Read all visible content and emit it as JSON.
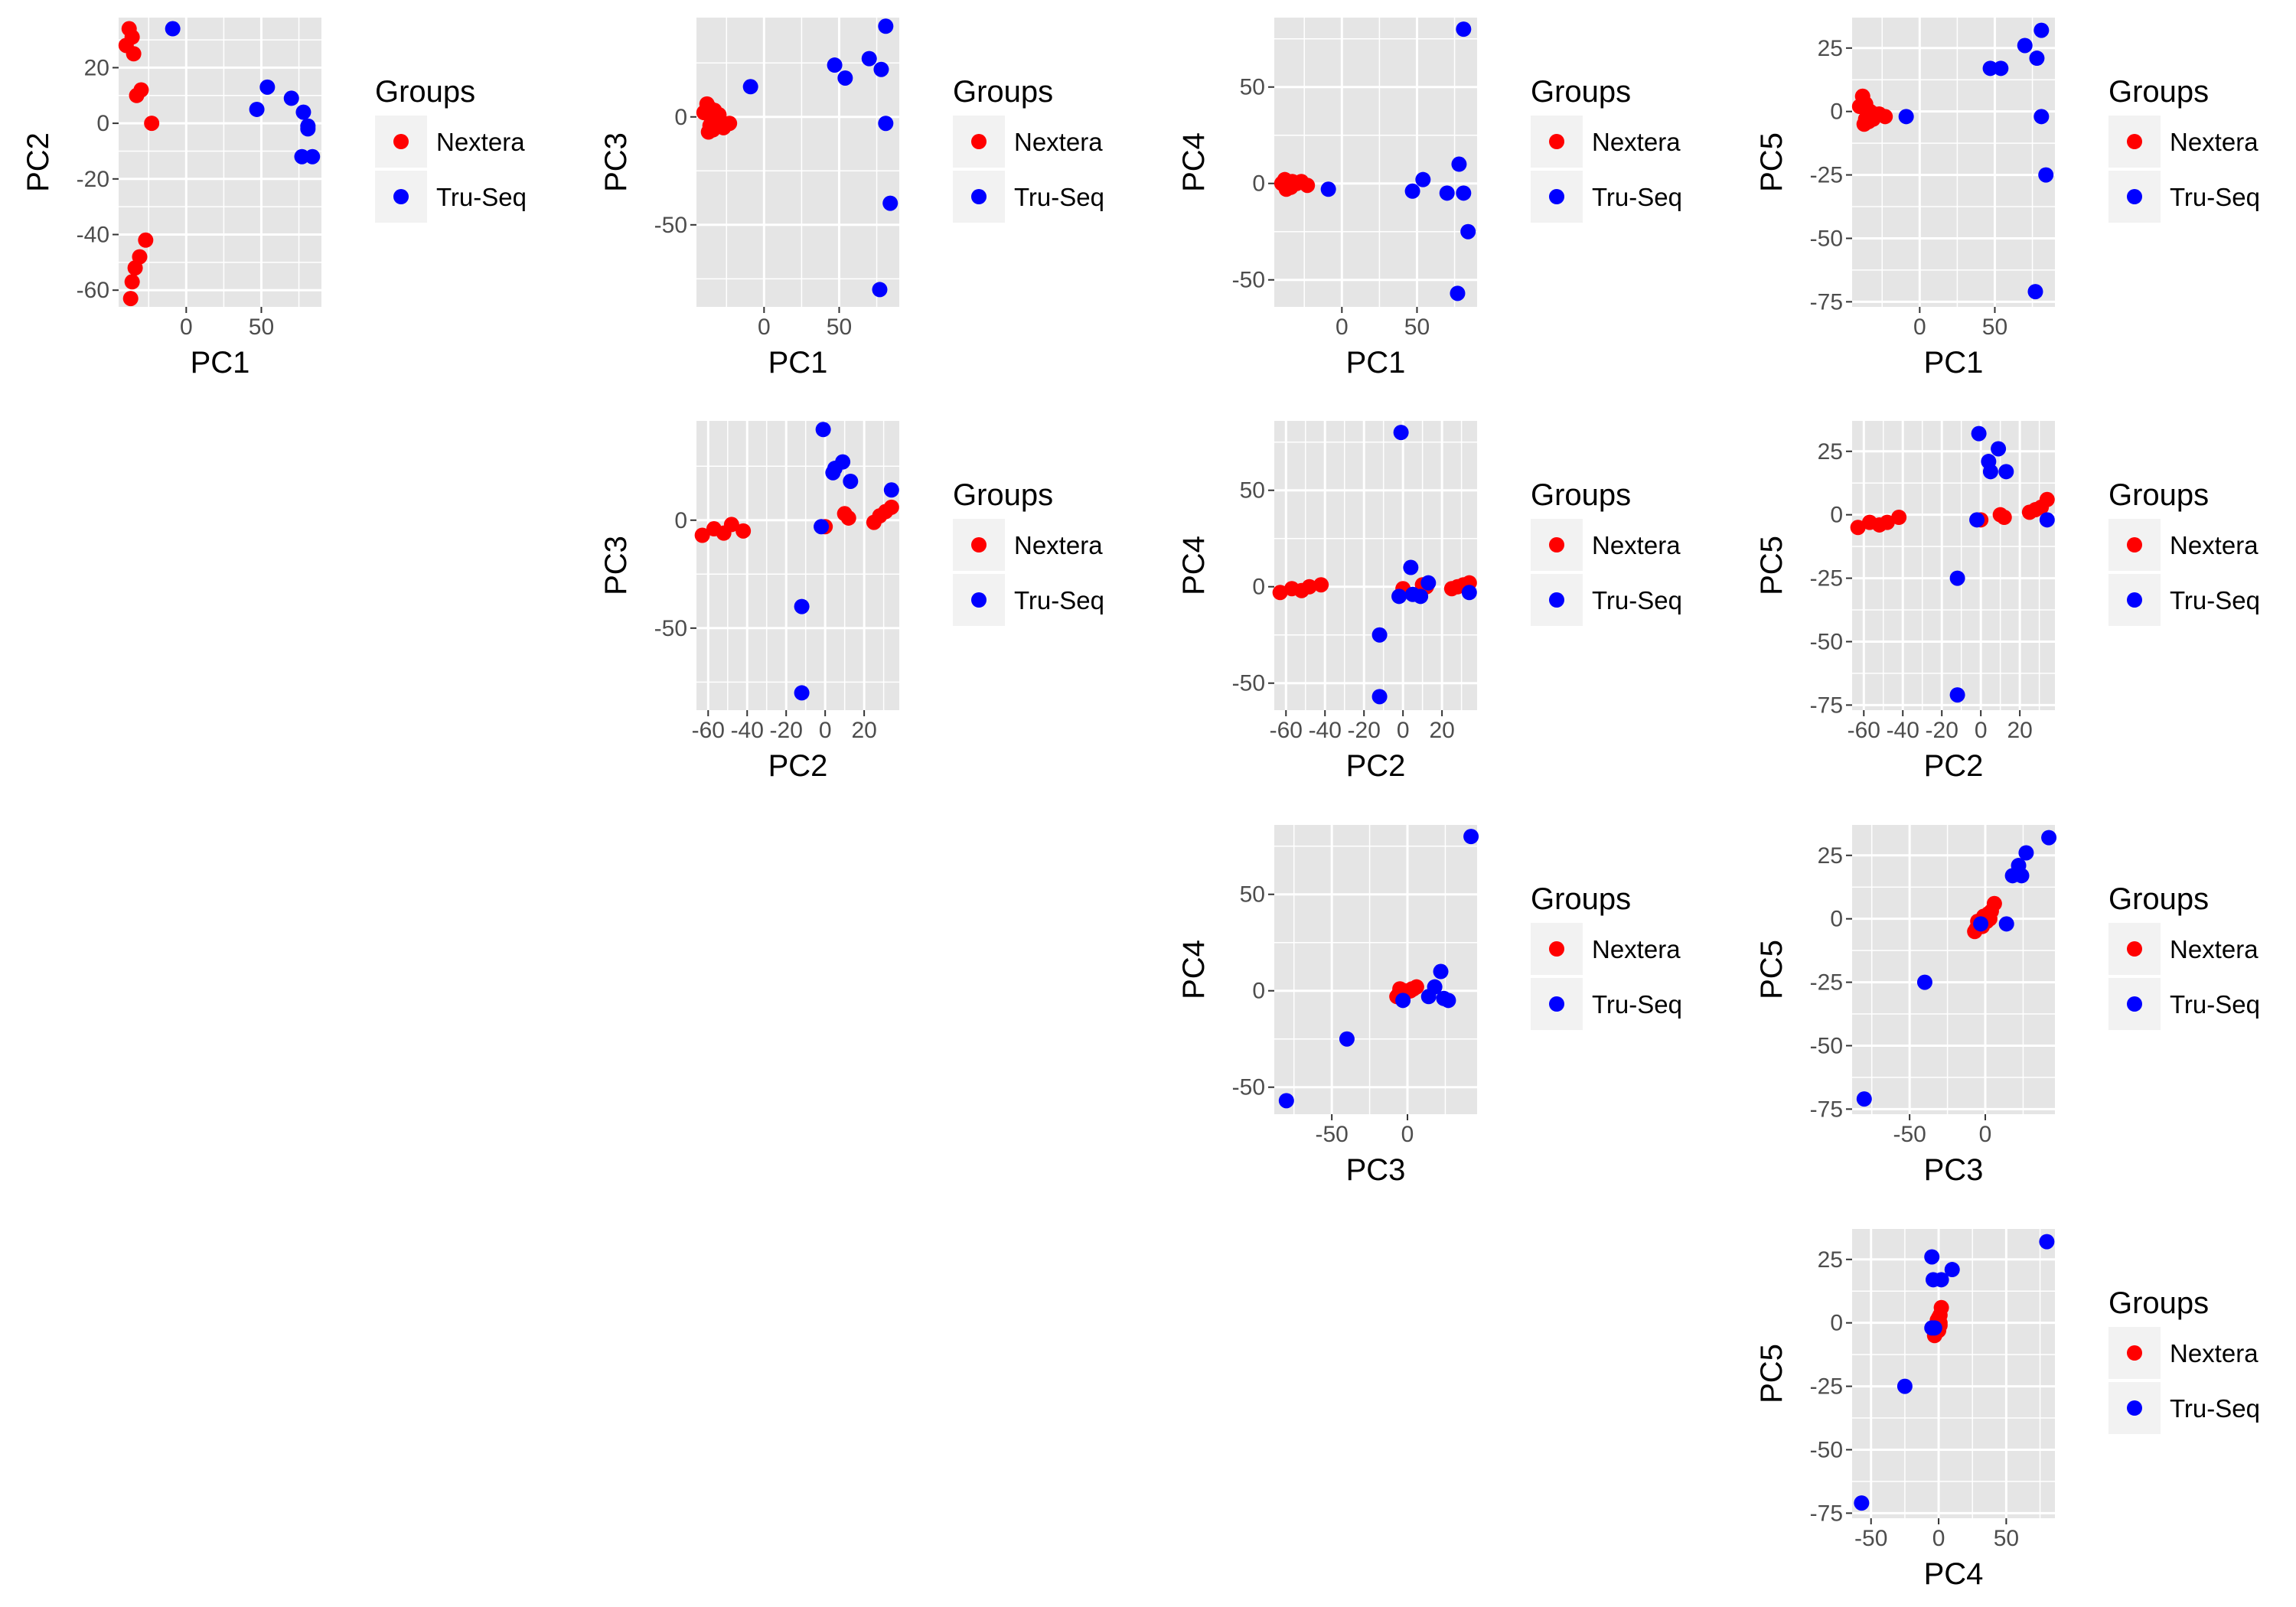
{
  "chart_data": {
    "type": "scatter",
    "layout": "pairs-matrix",
    "panel_background": "#e5e5e5",
    "grid_color": "#ffffff",
    "legend": {
      "title": "Groups",
      "placement": "right"
    },
    "groups": [
      {
        "name": "Nextera",
        "color": "#ff0000"
      },
      {
        "name": "Tru-Seq",
        "color": "#0000ff"
      }
    ],
    "components": [
      "PC1",
      "PC2",
      "PC3",
      "PC4",
      "PC5"
    ],
    "axes": {
      "PC1": {
        "range": [
          -45,
          90
        ],
        "ticks": [
          0,
          50
        ],
        "labels": [
          "0",
          "50"
        ]
      },
      "PC2": {
        "range": [
          -66,
          38
        ],
        "ticks": [
          -60,
          -40,
          -20,
          0,
          20
        ],
        "labels": [
          "-60",
          "-40",
          "-20",
          "0",
          "20"
        ]
      },
      "PC3": {
        "range": [
          -88,
          46
        ],
        "ticks": [
          -50,
          0
        ],
        "labels": [
          "-50",
          "0"
        ]
      },
      "PC4": {
        "range": [
          -64,
          86
        ],
        "ticks": [
          -50,
          0,
          50
        ],
        "labels": [
          "-50",
          "0",
          "50"
        ]
      },
      "PC5": {
        "range": [
          -77,
          37
        ],
        "ticks": [
          -75,
          -50,
          -25,
          0,
          25
        ],
        "labels": [
          "-75",
          "-50",
          "-25",
          "0",
          "25"
        ]
      }
    },
    "samples": [
      {
        "group": "Nextera",
        "pc": [
          -38,
          34,
          6,
          2,
          6
        ]
      },
      {
        "group": "Nextera",
        "pc": [
          -36,
          31,
          4,
          1,
          3
        ]
      },
      {
        "group": "Nextera",
        "pc": [
          -40,
          28,
          2,
          0,
          2
        ]
      },
      {
        "group": "Nextera",
        "pc": [
          -35,
          25,
          -1,
          -1,
          1
        ]
      },
      {
        "group": "Nextera",
        "pc": [
          -33,
          10,
          3,
          1,
          0
        ]
      },
      {
        "group": "Nextera",
        "pc": [
          -30,
          12,
          1,
          0,
          -1
        ]
      },
      {
        "group": "Nextera",
        "pc": [
          -23,
          0,
          -3,
          -1,
          -2
        ]
      },
      {
        "group": "Nextera",
        "pc": [
          -27,
          -42,
          -5,
          1,
          -1
        ]
      },
      {
        "group": "Nextera",
        "pc": [
          -31,
          -48,
          -2,
          0,
          -3
        ]
      },
      {
        "group": "Nextera",
        "pc": [
          -34,
          -52,
          -6,
          -2,
          -4
        ]
      },
      {
        "group": "Nextera",
        "pc": [
          -36,
          -57,
          -4,
          -1,
          -3
        ]
      },
      {
        "group": "Nextera",
        "pc": [
          -37,
          -63,
          -7,
          -3,
          -5
        ]
      },
      {
        "group": "Tru-Seq",
        "pc": [
          -9,
          34,
          14,
          -3,
          -2
        ]
      },
      {
        "group": "Tru-Seq",
        "pc": [
          54,
          13,
          18,
          2,
          17
        ]
      },
      {
        "group": "Tru-Seq",
        "pc": [
          47,
          5,
          24,
          -4,
          17
        ]
      },
      {
        "group": "Tru-Seq",
        "pc": [
          70,
          9,
          27,
          -5,
          26
        ]
      },
      {
        "group": "Tru-Seq",
        "pc": [
          78,
          4,
          22,
          10,
          21
        ]
      },
      {
        "group": "Tru-Seq",
        "pc": [
          81,
          -1,
          42,
          80,
          32
        ]
      },
      {
        "group": "Tru-Seq",
        "pc": [
          77,
          -12,
          -80,
          -57,
          -71
        ]
      },
      {
        "group": "Tru-Seq",
        "pc": [
          84,
          -12,
          -40,
          -25,
          -25
        ]
      },
      {
        "group": "Tru-Seq",
        "pc": [
          81,
          -2,
          -3,
          -5,
          -2
        ]
      }
    ]
  }
}
